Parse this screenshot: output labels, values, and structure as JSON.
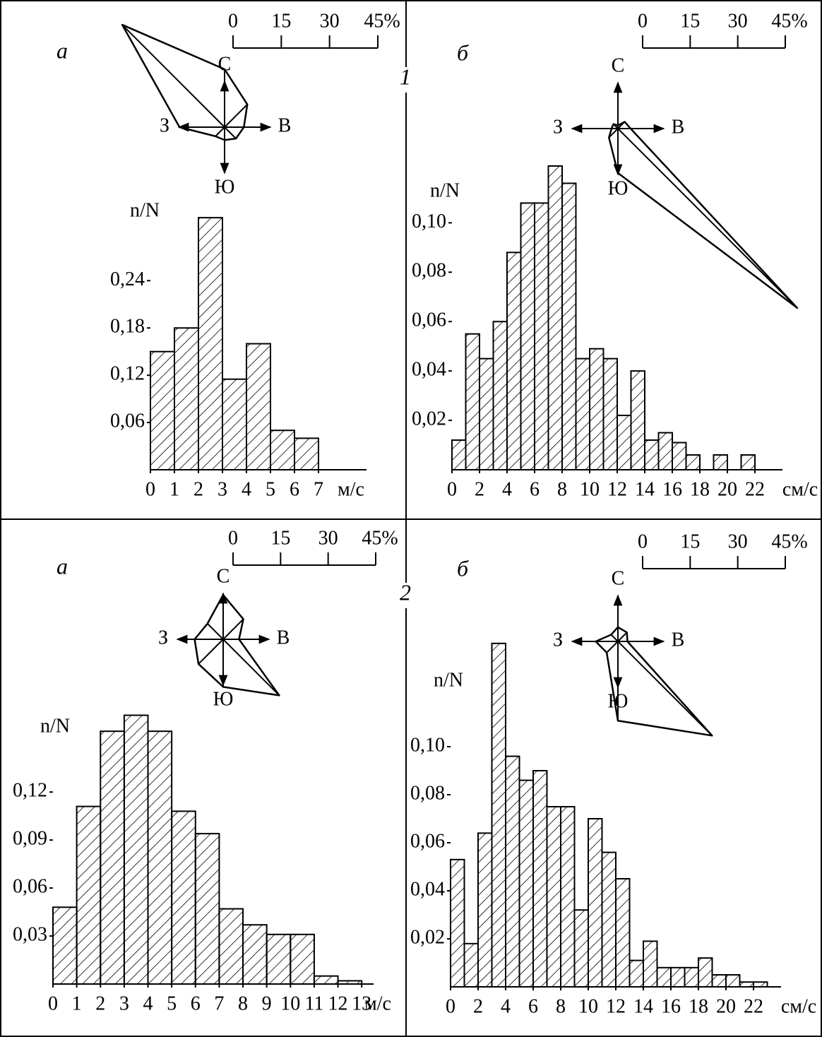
{
  "row_labels": [
    "1",
    "2"
  ],
  "chart_data": [
    {
      "type": "histogram",
      "label": "а",
      "ylabel": "n/N",
      "xunit": "м/с",
      "color": "#000000",
      "bins": [
        0,
        1,
        2,
        3,
        4,
        5,
        6,
        7
      ],
      "values": [
        0.15,
        0.18,
        0.32,
        0.115,
        0.16,
        0.05,
        0.04
      ],
      "xlim": [
        0,
        9
      ],
      "ylim": [
        0,
        0.33
      ],
      "xticks": [
        0,
        1,
        2,
        3,
        4,
        5,
        6,
        7
      ],
      "yticks": [
        {
          "value": 0.06,
          "label": "0,06"
        },
        {
          "value": 0.12,
          "label": "0,12"
        },
        {
          "value": 0.18,
          "label": "0,18"
        },
        {
          "value": 0.24,
          "label": "0,24"
        }
      ]
    },
    {
      "type": "histogram",
      "label": "б",
      "ylabel": "n/N",
      "xunit": "см/с",
      "color": "#000000",
      "bins": [
        0,
        1,
        2,
        3,
        4,
        5,
        6,
        7,
        8,
        9,
        10,
        11,
        12,
        13,
        14,
        15,
        16,
        17,
        18,
        19,
        20,
        21,
        22
      ],
      "values": [
        0.012,
        0.055,
        0.045,
        0.06,
        0.088,
        0.108,
        0.108,
        0.123,
        0.116,
        0.045,
        0.049,
        0.045,
        0.022,
        0.04,
        0.012,
        0.015,
        0.011,
        0.006,
        0,
        0.006,
        0,
        0.006
      ],
      "xlim": [
        0,
        24
      ],
      "ylim": [
        0,
        0.125
      ],
      "xticks": [
        0,
        2,
        4,
        6,
        8,
        10,
        12,
        14,
        16,
        18,
        20,
        22
      ],
      "yticks": [
        {
          "value": 0.02,
          "label": "0,02"
        },
        {
          "value": 0.04,
          "label": "0,04"
        },
        {
          "value": 0.06,
          "label": "0,06"
        },
        {
          "value": 0.08,
          "label": "0,08"
        },
        {
          "value": 0.1,
          "label": "0,10"
        }
      ]
    },
    {
      "type": "histogram",
      "label": "а",
      "ylabel": "n/N",
      "xunit": "м/с",
      "color": "#000000",
      "bins": [
        0,
        1,
        2,
        3,
        4,
        5,
        6,
        7,
        8,
        9,
        10,
        11,
        12,
        13
      ],
      "values": [
        0.048,
        0.111,
        0.158,
        0.168,
        0.158,
        0.108,
        0.094,
        0.047,
        0.037,
        0.031,
        0.031,
        0.005,
        0.002
      ],
      "xlim": [
        0,
        13.5
      ],
      "ylim": [
        0,
        0.17
      ],
      "xticks": [
        0,
        1,
        2,
        3,
        4,
        5,
        6,
        7,
        8,
        9,
        10,
        11,
        12,
        13
      ],
      "yticks": [
        {
          "value": 0.03,
          "label": "0,03"
        },
        {
          "value": 0.06,
          "label": "0,06"
        },
        {
          "value": 0.09,
          "label": "0,09"
        },
        {
          "value": 0.12,
          "label": "0,12"
        }
      ]
    },
    {
      "type": "histogram",
      "label": "б",
      "ylabel": "n/N",
      "xunit": "см/с",
      "color": "#000000",
      "bins": [
        0,
        1,
        2,
        3,
        4,
        5,
        6,
        7,
        8,
        9,
        10,
        11,
        12,
        13,
        14,
        15,
        16,
        17,
        18,
        19,
        20,
        21,
        22,
        23
      ],
      "values": [
        0.053,
        0.018,
        0.064,
        0.143,
        0.096,
        0.086,
        0.09,
        0.075,
        0.075,
        0.032,
        0.07,
        0.056,
        0.045,
        0.011,
        0.019,
        0.008,
        0.008,
        0.008,
        0.012,
        0.005,
        0.005,
        0.002,
        0.002
      ],
      "xlim": [
        0,
        24
      ],
      "ylim": [
        0,
        0.145
      ],
      "xticks": [
        0,
        2,
        4,
        6,
        8,
        10,
        12,
        14,
        16,
        18,
        20,
        22
      ],
      "yticks": [
        {
          "value": 0.02,
          "label": "0,02"
        },
        {
          "value": 0.04,
          "label": "0,04"
        },
        {
          "value": 0.06,
          "label": "0,06"
        },
        {
          "value": 0.08,
          "label": "0,08"
        },
        {
          "value": 0.1,
          "label": "0,10"
        }
      ]
    },
    {
      "type": "rose",
      "categories": [
        "С",
        null,
        "В",
        null,
        "Ю",
        null,
        "З",
        null
      ],
      "values": [
        18,
        10,
        6,
        5,
        4,
        4,
        14,
        45
      ],
      "rlim": [
        0,
        45
      ],
      "rticks": [
        0,
        15,
        30,
        {
          "value": 45,
          "label": "45%"
        }
      ]
    },
    {
      "type": "rose",
      "categories": [
        "С",
        null,
        "В",
        null,
        "Ю",
        null,
        "З",
        null
      ],
      "values": [
        1,
        3,
        4,
        80,
        14,
        4,
        2,
        2
      ],
      "rlim": [
        0,
        45
      ],
      "rticks": [
        0,
        15,
        30,
        {
          "value": 45,
          "label": "45%"
        }
      ]
    },
    {
      "type": "rose",
      "categories": [
        "С",
        null,
        "В",
        null,
        "Ю",
        null,
        "З",
        null
      ],
      "values": [
        14,
        9,
        5,
        25,
        15,
        11,
        9,
        7
      ],
      "rlim": [
        0,
        45
      ],
      "rticks": [
        0,
        15,
        30,
        {
          "value": 45,
          "label": "45%"
        }
      ]
    },
    {
      "type": "rose",
      "categories": [
        "С",
        null,
        "В",
        null,
        "Ю",
        null,
        "З",
        null
      ],
      "values": [
        4.5,
        4,
        3,
        42,
        25,
        5,
        7,
        3
      ],
      "rlim": [
        0,
        45
      ],
      "rticks": [
        0,
        15,
        30,
        {
          "value": 45,
          "label": "45%"
        }
      ]
    }
  ]
}
